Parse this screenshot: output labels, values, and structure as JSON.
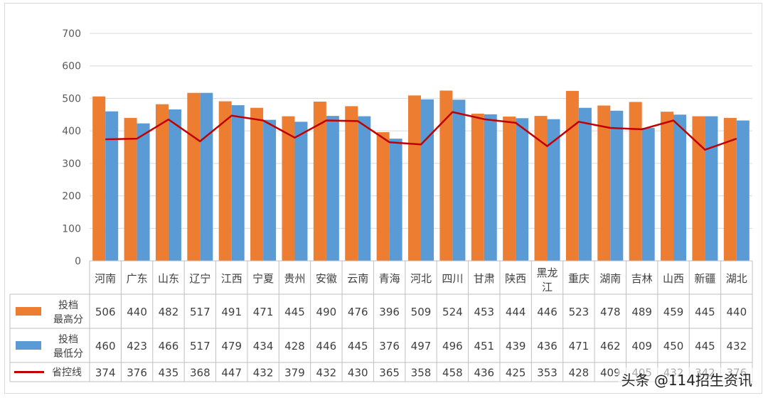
{
  "colors": {
    "max": "#ED7D31",
    "min": "#5B9BD5",
    "line": "#C00000",
    "grid": "#d9d9d9",
    "axis": "#bfbfbf"
  },
  "watermark": "头条 @114招生资讯",
  "chart_data": {
    "type": "bar",
    "categories": [
      "河南",
      "广东",
      "山东",
      "辽宁",
      "江西",
      "宁夏",
      "贵州",
      "安徽",
      "云南",
      "青海",
      "河北",
      "四川",
      "甘肃",
      "陕西",
      "黑龙江",
      "重庆",
      "湖南",
      "吉林",
      "山西",
      "新疆",
      "湖北"
    ],
    "series": [
      {
        "name": "投档最高分",
        "type": "bar",
        "legend_lines": [
          "投档",
          "最高分"
        ],
        "color": "#ED7D31",
        "values": [
          506,
          440,
          482,
          517,
          491,
          471,
          445,
          490,
          476,
          396,
          509,
          524,
          453,
          444,
          446,
          523,
          478,
          489,
          459,
          445,
          440
        ]
      },
      {
        "name": "投档最低分",
        "type": "bar",
        "legend_lines": [
          "投档",
          "最低分"
        ],
        "color": "#5B9BD5",
        "values": [
          460,
          423,
          466,
          517,
          479,
          434,
          428,
          446,
          445,
          376,
          497,
          496,
          451,
          439,
          436,
          471,
          462,
          409,
          450,
          445,
          432
        ]
      },
      {
        "name": "省控线",
        "type": "line",
        "legend_lines": [
          "省控线"
        ],
        "color": "#C00000",
        "values": [
          374,
          376,
          435,
          368,
          447,
          432,
          379,
          432,
          430,
          365,
          358,
          458,
          436,
          425,
          353,
          428,
          409,
          405,
          432,
          342,
          376
        ]
      }
    ],
    "ylim": [
      0,
      700
    ],
    "yticks": [
      0,
      100,
      200,
      300,
      400,
      500,
      600,
      700
    ],
    "grid": true,
    "legend": "data-table"
  }
}
